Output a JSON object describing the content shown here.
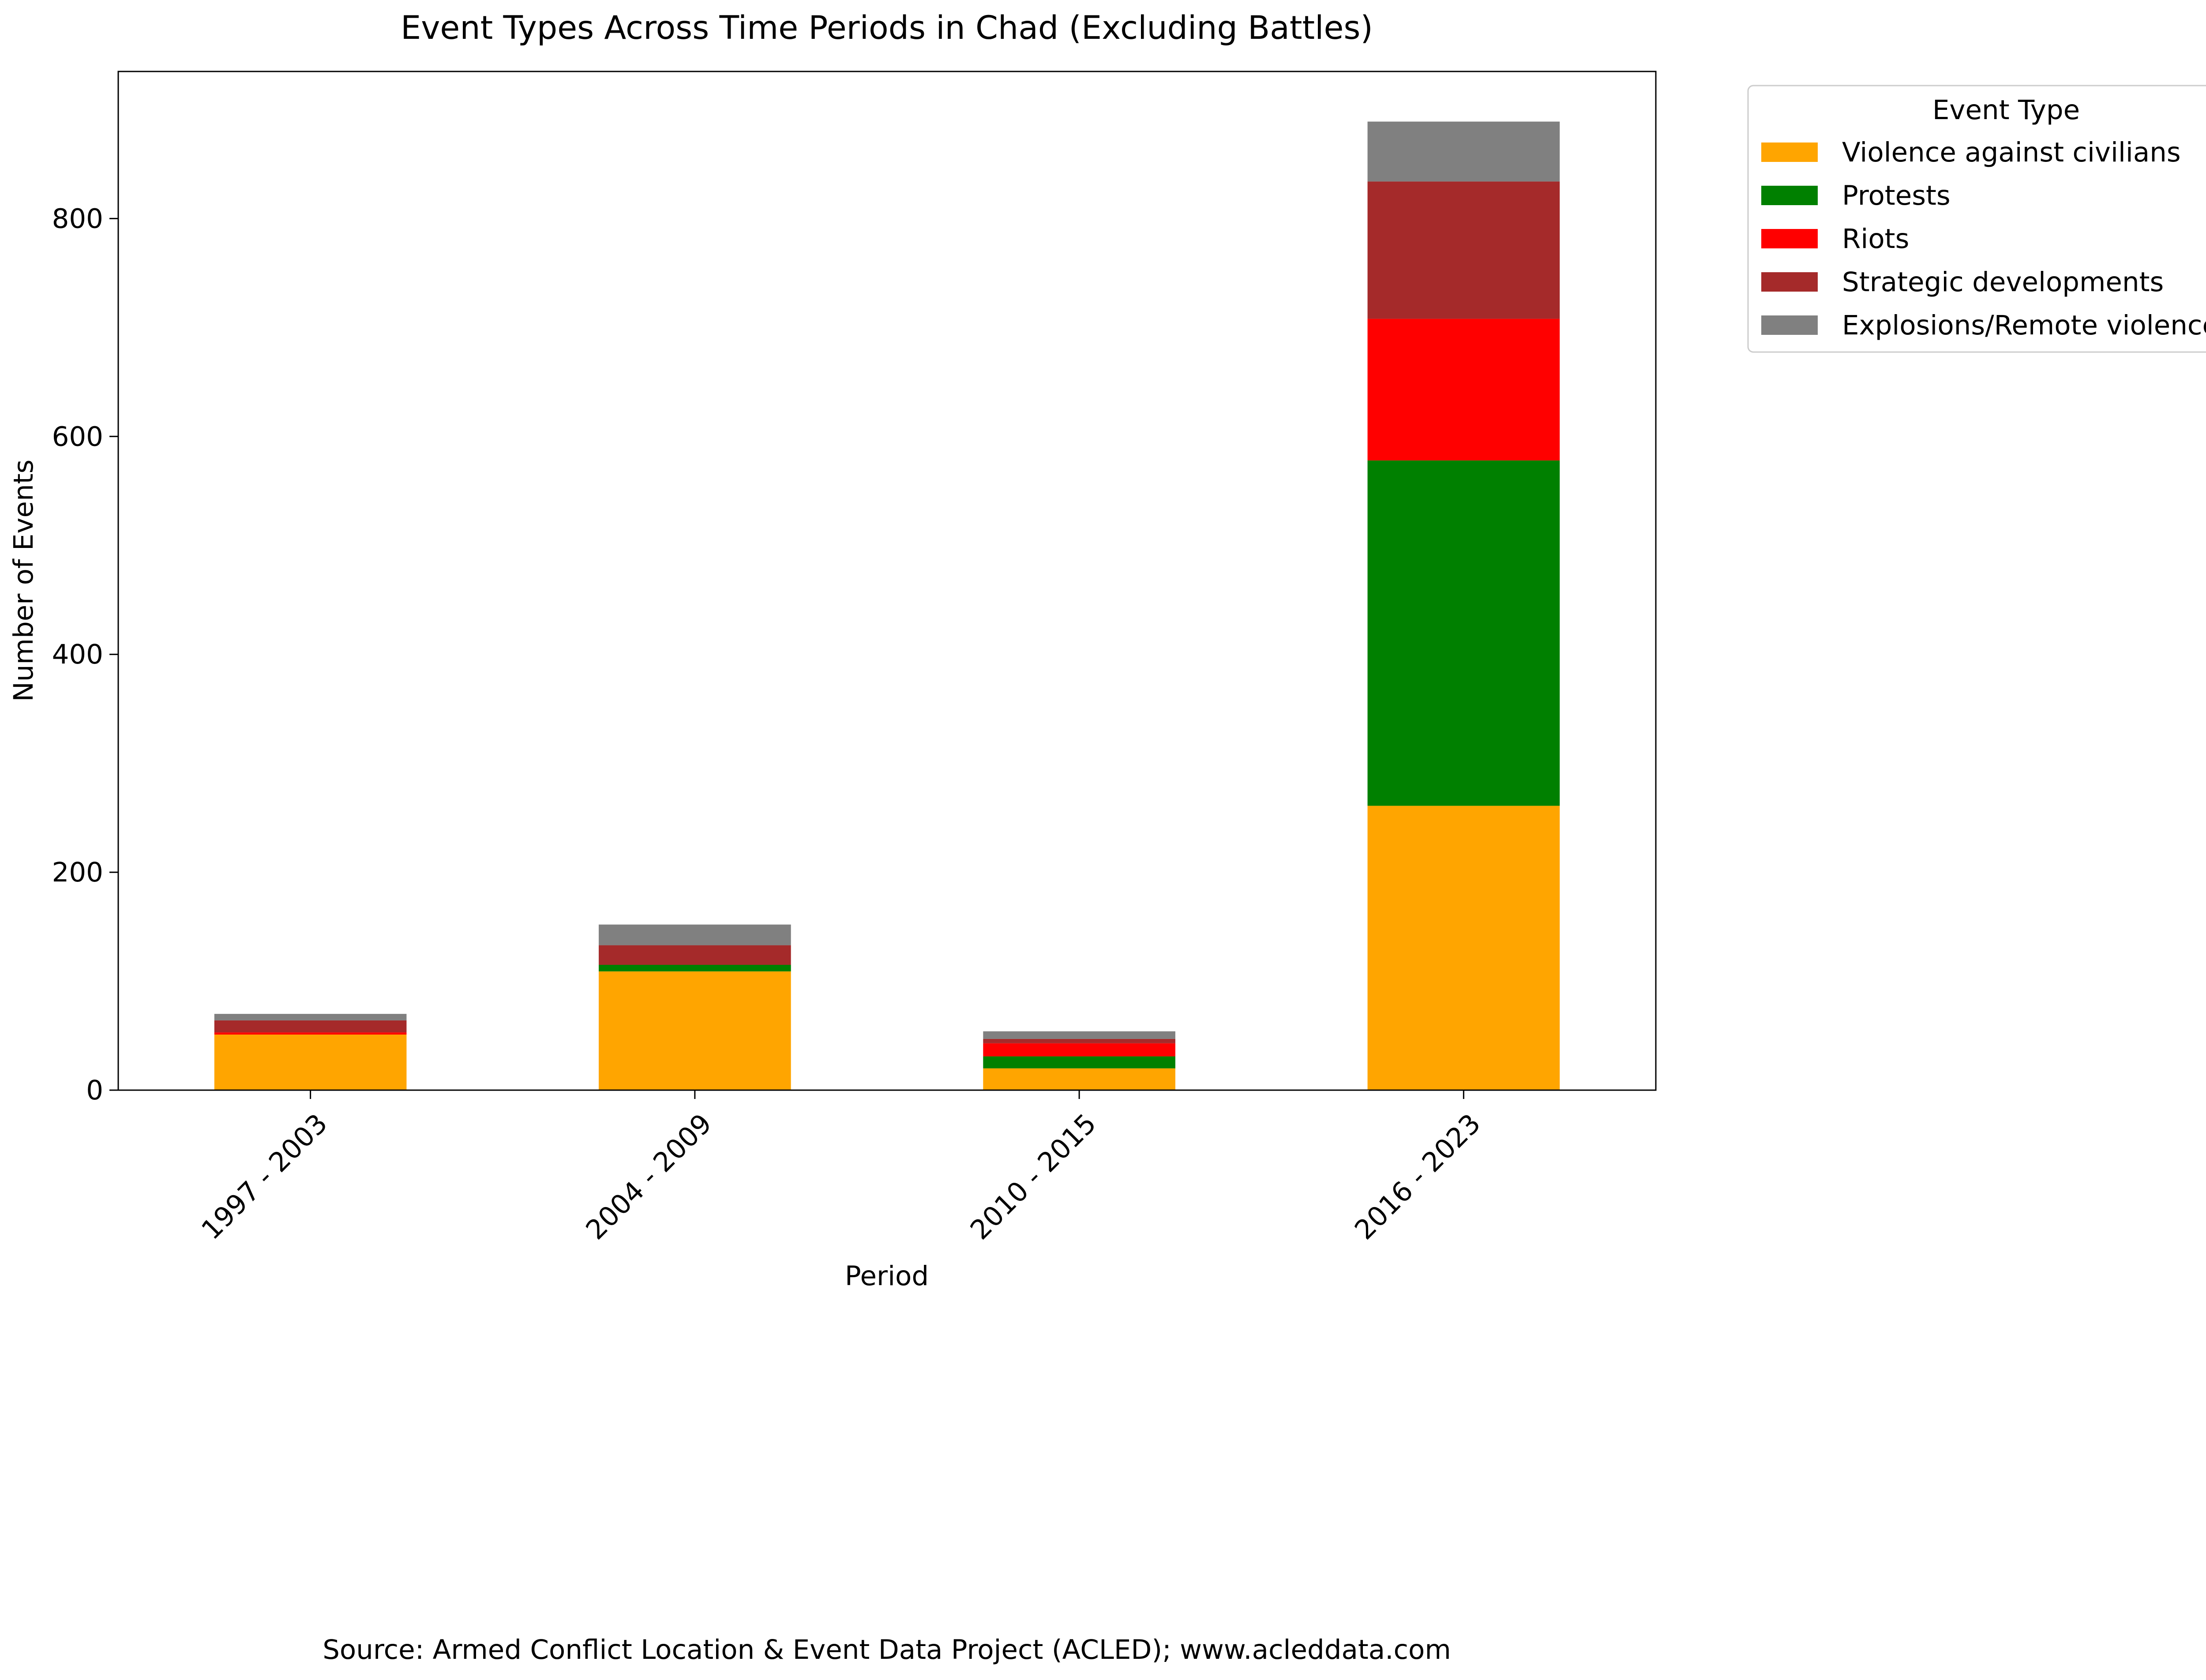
{
  "chart_data": {
    "type": "bar",
    "stacked": true,
    "title": "Event Types Across Time Periods in Chad (Excluding Battles)",
    "xlabel": "Period",
    "ylabel": "Number of Events",
    "categories": [
      "1997 - 2003",
      "2004 - 2009",
      "2010 - 2015",
      "2016 - 2023"
    ],
    "ylim": [
      0,
      935
    ],
    "yticks": [
      0,
      200,
      400,
      600,
      800
    ],
    "grid": false,
    "legend": {
      "title": "Event Type",
      "placement": "outside-top-right"
    },
    "series": [
      {
        "name": "Violence against civilians",
        "color": "#FFA500",
        "values": [
          51,
          109,
          20,
          261
        ]
      },
      {
        "name": "Protests",
        "color": "#008000",
        "values": [
          0,
          6,
          11,
          317
        ]
      },
      {
        "name": "Riots",
        "color": "#FF0000",
        "values": [
          2,
          0,
          12,
          130
        ]
      },
      {
        "name": "Strategic developments",
        "color": "#A52A2A",
        "values": [
          11,
          18,
          4,
          126
        ]
      },
      {
        "name": "Explosions/Remote violence",
        "color": "#808080",
        "values": [
          6,
          19,
          7,
          55
        ]
      }
    ]
  },
  "source_note": "Source: Armed Conflict Location & Event Data Project (ACLED); www.acleddata.com"
}
